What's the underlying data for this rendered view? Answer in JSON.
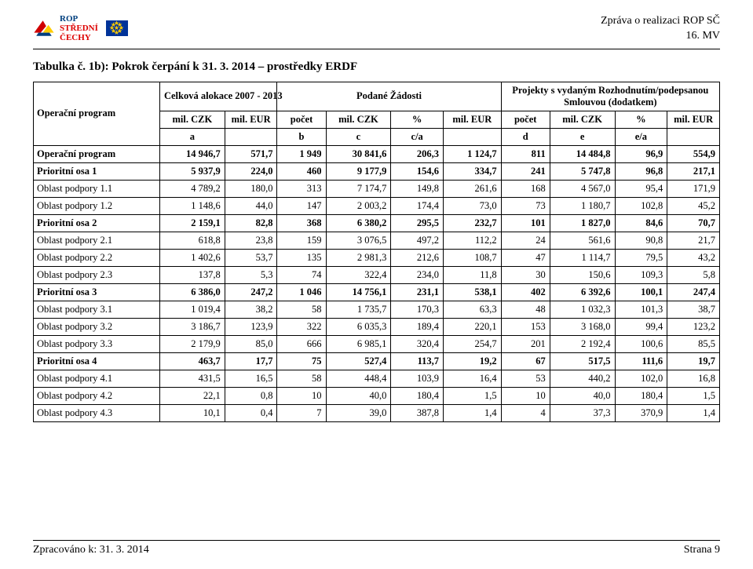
{
  "header": {
    "logo_line1": "ROP",
    "logo_line2": "STŘEDNÍ",
    "logo_line3": "ČECHY",
    "right1": "Zpráva o realizaci ROP SČ",
    "right2": "16. MV"
  },
  "title": "Tabulka č. 1b): Pokrok čerpání k 31. 3. 2014 – prostředky ERDF",
  "thead": {
    "row_label": "Operační program",
    "grp1": "Celková alokace 2007 - 2013",
    "grp2": "Podané Žádosti",
    "grp3_l1": "Projekty s vydaným Rozhodnutím/podepsanou",
    "grp3_l2": "Smlouvou (dodatkem)",
    "h_milczk": "mil. CZK",
    "h_mileur": "mil. EUR",
    "h_pocet": "počet",
    "h_pct": "%",
    "sub": [
      "a",
      "b",
      "c",
      "c/a",
      "d",
      "e",
      "e/a"
    ]
  },
  "rows": [
    {
      "bold": true,
      "name": "Operační program",
      "v": [
        "14 946,7",
        "571,7",
        "1 949",
        "30 841,6",
        "206,3",
        "1 124,7",
        "811",
        "14 484,8",
        "96,9",
        "554,9"
      ]
    },
    {
      "bold": true,
      "name": "Prioritní osa 1",
      "v": [
        "5 937,9",
        "224,0",
        "460",
        "9 177,9",
        "154,6",
        "334,7",
        "241",
        "5 747,8",
        "96,8",
        "217,1"
      ]
    },
    {
      "bold": false,
      "name": "Oblast podpory 1.1",
      "v": [
        "4 789,2",
        "180,0",
        "313",
        "7 174,7",
        "149,8",
        "261,6",
        "168",
        "4 567,0",
        "95,4",
        "171,9"
      ]
    },
    {
      "bold": false,
      "name": "Oblast podpory 1.2",
      "v": [
        "1 148,6",
        "44,0",
        "147",
        "2 003,2",
        "174,4",
        "73,0",
        "73",
        "1 180,7",
        "102,8",
        "45,2"
      ]
    },
    {
      "bold": true,
      "name": "Prioritní osa 2",
      "v": [
        "2 159,1",
        "82,8",
        "368",
        "6 380,2",
        "295,5",
        "232,7",
        "101",
        "1 827,0",
        "84,6",
        "70,7"
      ]
    },
    {
      "bold": false,
      "name": "Oblast podpory 2.1",
      "v": [
        "618,8",
        "23,8",
        "159",
        "3 076,5",
        "497,2",
        "112,2",
        "24",
        "561,6",
        "90,8",
        "21,7"
      ]
    },
    {
      "bold": false,
      "name": "Oblast podpory 2.2",
      "v": [
        "1 402,6",
        "53,7",
        "135",
        "2 981,3",
        "212,6",
        "108,7",
        "47",
        "1 114,7",
        "79,5",
        "43,2"
      ]
    },
    {
      "bold": false,
      "name": "Oblast podpory 2.3",
      "v": [
        "137,8",
        "5,3",
        "74",
        "322,4",
        "234,0",
        "11,8",
        "30",
        "150,6",
        "109,3",
        "5,8"
      ]
    },
    {
      "bold": true,
      "name": "Prioritní osa 3",
      "v": [
        "6 386,0",
        "247,2",
        "1 046",
        "14 756,1",
        "231,1",
        "538,1",
        "402",
        "6 392,6",
        "100,1",
        "247,4"
      ]
    },
    {
      "bold": false,
      "name": "Oblast podpory 3.1",
      "v": [
        "1 019,4",
        "38,2",
        "58",
        "1 735,7",
        "170,3",
        "63,3",
        "48",
        "1 032,3",
        "101,3",
        "38,7"
      ]
    },
    {
      "bold": false,
      "name": "Oblast podpory 3.2",
      "v": [
        "3 186,7",
        "123,9",
        "322",
        "6 035,3",
        "189,4",
        "220,1",
        "153",
        "3 168,0",
        "99,4",
        "123,2"
      ]
    },
    {
      "bold": false,
      "name": "Oblast podpory 3.3",
      "v": [
        "2 179,9",
        "85,0",
        "666",
        "6 985,1",
        "320,4",
        "254,7",
        "201",
        "2 192,4",
        "100,6",
        "85,5"
      ]
    },
    {
      "bold": true,
      "name": "Prioritní osa 4",
      "v": [
        "463,7",
        "17,7",
        "75",
        "527,4",
        "113,7",
        "19,2",
        "67",
        "517,5",
        "111,6",
        "19,7"
      ]
    },
    {
      "bold": false,
      "name": "Oblast podpory 4.1",
      "v": [
        "431,5",
        "16,5",
        "58",
        "448,4",
        "103,9",
        "16,4",
        "53",
        "440,2",
        "102,0",
        "16,8"
      ]
    },
    {
      "bold": false,
      "name": "Oblast podpory 4.2",
      "v": [
        "22,1",
        "0,8",
        "10",
        "40,0",
        "180,4",
        "1,5",
        "10",
        "40,0",
        "180,4",
        "1,5"
      ]
    },
    {
      "bold": false,
      "name": "Oblast podpory 4.3",
      "v": [
        "10,1",
        "0,4",
        "7",
        "39,0",
        "387,8",
        "1,4",
        "4",
        "37,3",
        "370,9",
        "1,4"
      ]
    }
  ],
  "footer": {
    "left": "Zpracováno k: 31. 3. 2014",
    "right": "Strana 9"
  },
  "colors": {
    "text": "#000000",
    "border": "#000000",
    "background": "#ffffff",
    "logo_blue": "#003f7f",
    "logo_red": "#d00000",
    "eu_blue": "#003399",
    "eu_gold": "#ffcc00"
  }
}
